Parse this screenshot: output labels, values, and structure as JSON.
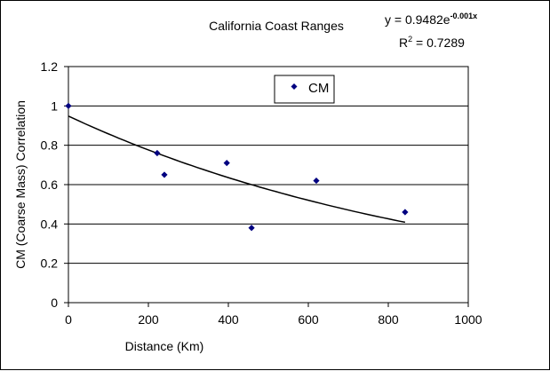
{
  "chart_data": {
    "type": "scatter",
    "title": "California Coast Ranges",
    "xlabel": "Distance (Km)",
    "ylabel": "CM (Coarse Mass) Correlation",
    "xlim": [
      0,
      1000
    ],
    "ylim": [
      0,
      1.2
    ],
    "x_ticks": [
      "0",
      "200",
      "400",
      "600",
      "800",
      "1000"
    ],
    "y_ticks": [
      "0",
      "0.2",
      "0.4",
      "0.6",
      "0.8",
      "1",
      "1.2"
    ],
    "grid": "horizontal",
    "legend_position": "top-center",
    "series": [
      {
        "name": "CM",
        "color": "#000080",
        "marker": "diamond",
        "points": [
          {
            "x": 0,
            "y": 1.0
          },
          {
            "x": 222,
            "y": 0.76
          },
          {
            "x": 240,
            "y": 0.65
          },
          {
            "x": 396,
            "y": 0.71
          },
          {
            "x": 458,
            "y": 0.38
          },
          {
            "x": 620,
            "y": 0.62
          },
          {
            "x": 842,
            "y": 0.46
          }
        ]
      }
    ],
    "trendline": {
      "type": "exponential",
      "a": 0.9482,
      "b": -0.001,
      "x_range": [
        0,
        842
      ],
      "equation_prefix": "y = 0.9482e",
      "equation_exponent": "-0.001x",
      "r2_prefix": "R",
      "r2_sup": "2",
      "r2_value": " = 0.7289"
    }
  }
}
